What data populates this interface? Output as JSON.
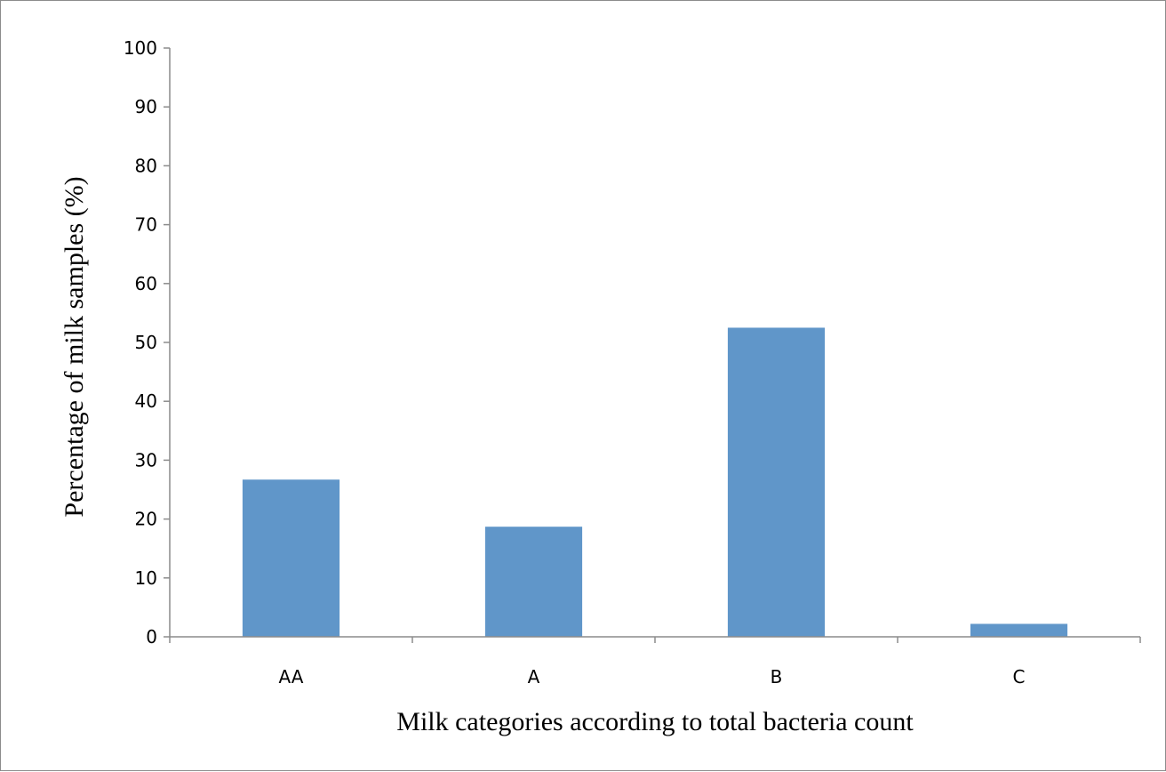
{
  "chart_data": {
    "type": "bar",
    "categories": [
      "AA",
      "A",
      "B",
      "C"
    ],
    "values": [
      26.7,
      18.7,
      52.5,
      2.2
    ],
    "title": "",
    "xlabel": "Milk categories according to total bacteria count",
    "ylabel": "Percentage of milk samples (%)",
    "ylim": [
      0,
      100
    ],
    "yticks": [
      0,
      10,
      20,
      30,
      40,
      50,
      60,
      70,
      80,
      90,
      100
    ],
    "grid": false,
    "legend": "none",
    "bar_color": "#6096c9"
  }
}
